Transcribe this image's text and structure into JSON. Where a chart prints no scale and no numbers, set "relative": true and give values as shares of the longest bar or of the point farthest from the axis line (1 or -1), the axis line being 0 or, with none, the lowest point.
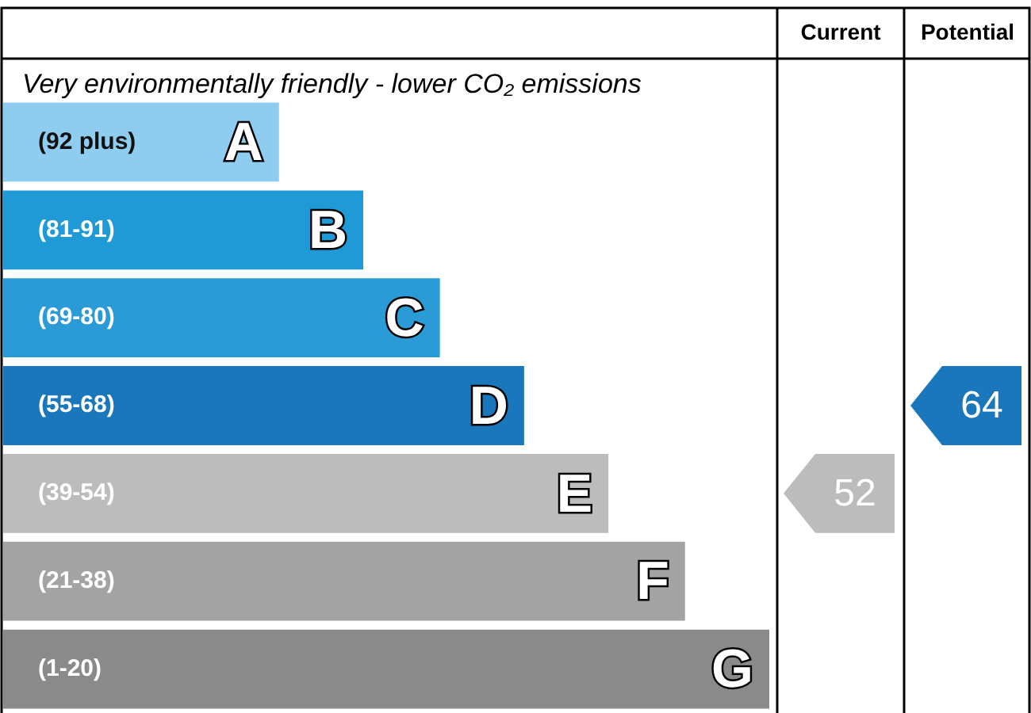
{
  "chart_data": {
    "type": "bar",
    "orientation": "horizontal",
    "relative": true,
    "title": "Very environmentally friendly - lower CO₂ emissions",
    "categories": [
      "A",
      "B",
      "C",
      "D",
      "E",
      "F",
      "G"
    ],
    "values": [
      0.36,
      0.47,
      0.57,
      0.68,
      0.79,
      0.89,
      1
    ],
    "colors": [
      "#8ecdf0",
      "#1f9ad6",
      "#2a9bd6",
      "#1a77bb",
      "#bcbcbc",
      "#a3a3a3",
      "#8a8a8a"
    ],
    "annotations": [
      "(92 plus)",
      "(81-91)",
      "(69-80)",
      "(55-68)",
      "(39-54)",
      "(21-38)",
      "(1-20)",
      "Current",
      "Potential",
      "52",
      "64"
    ],
    "legend": false
  }
}
